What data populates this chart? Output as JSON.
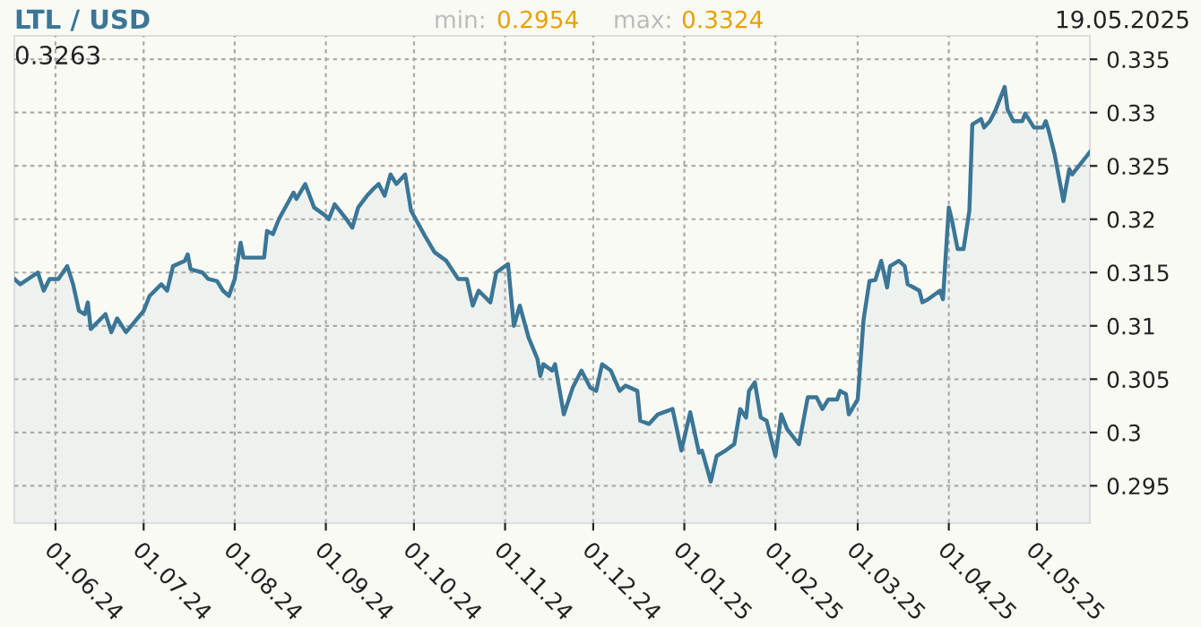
{
  "chart_data": {
    "type": "area",
    "title": "LTL / USD",
    "annotations": [
      "min:",
      "0.2954",
      "max:",
      "0.3324",
      "19.05.2025",
      "0.3263"
    ],
    "x": [
      "2024-05-18",
      "2024-05-20",
      "2024-05-26",
      "2024-05-28",
      "2024-05-30",
      "2024-06-02",
      "2024-06-05",
      "2024-06-07",
      "2024-06-09",
      "2024-06-11",
      "2024-06-12",
      "2024-06-13",
      "2024-06-18",
      "2024-06-20",
      "2024-06-22",
      "2024-06-25",
      "2024-07-01",
      "2024-07-03",
      "2024-07-07",
      "2024-07-09",
      "2024-07-11",
      "2024-07-15",
      "2024-07-16",
      "2024-07-17",
      "2024-07-21",
      "2024-07-23",
      "2024-07-26",
      "2024-07-28",
      "2024-07-30",
      "2024-08-01",
      "2024-08-03",
      "2024-08-04",
      "2024-08-07",
      "2024-08-11",
      "2024-08-12",
      "2024-08-14",
      "2024-08-16",
      "2024-08-21",
      "2024-08-22",
      "2024-08-25",
      "2024-08-28",
      "2024-09-01",
      "2024-09-02",
      "2024-09-04",
      "2024-09-08",
      "2024-09-10",
      "2024-09-12",
      "2024-09-15",
      "2024-09-17",
      "2024-09-19",
      "2024-09-21",
      "2024-09-23",
      "2024-09-25",
      "2024-09-28",
      "2024-09-30",
      "2024-10-05",
      "2024-10-08",
      "2024-10-12",
      "2024-10-16",
      "2024-10-19",
      "2024-10-21",
      "2024-10-23",
      "2024-10-27",
      "2024-10-29",
      "2024-11-02",
      "2024-11-04",
      "2024-11-06",
      "2024-11-09",
      "2024-11-12",
      "2024-11-13",
      "2024-11-14",
      "2024-11-17",
      "2024-11-18",
      "2024-11-21",
      "2024-11-24",
      "2024-11-27",
      "2024-11-30",
      "2024-12-02",
      "2024-12-04",
      "2024-12-07",
      "2024-12-10",
      "2024-12-12",
      "2024-12-16",
      "2024-12-17",
      "2024-12-20",
      "2024-12-23",
      "2024-12-28",
      "2024-12-31",
      "2025-01-03",
      "2025-01-06",
      "2025-01-07",
      "2025-01-10",
      "2025-01-12",
      "2025-01-15",
      "2025-01-18",
      "2025-01-20",
      "2025-01-22",
      "2025-01-23",
      "2025-01-25",
      "2025-01-27",
      "2025-01-29",
      "2025-02-01",
      "2025-02-03",
      "2025-02-05",
      "2025-02-09",
      "2025-02-12",
      "2025-02-15",
      "2025-02-17",
      "2025-02-19",
      "2025-02-22",
      "2025-02-23",
      "2025-02-25",
      "2025-02-26",
      "2025-03-01",
      "2025-03-03",
      "2025-03-05",
      "2025-03-07",
      "2025-03-09",
      "2025-03-11",
      "2025-03-12",
      "2025-03-15",
      "2025-03-17",
      "2025-03-18",
      "2025-03-22",
      "2025-03-23",
      "2025-03-25",
      "2025-03-29",
      "2025-03-30",
      "2025-04-01",
      "2025-04-02",
      "2025-04-04",
      "2025-04-06",
      "2025-04-08",
      "2025-04-09",
      "2025-04-12",
      "2025-04-13",
      "2025-04-15",
      "2025-04-17",
      "2025-04-20",
      "2025-04-21",
      "2025-04-23",
      "2025-04-26",
      "2025-04-27",
      "2025-04-30",
      "2025-05-03",
      "2025-05-04",
      "2025-05-05",
      "2025-05-07",
      "2025-05-10",
      "2025-05-12",
      "2025-05-13",
      "2025-05-19"
    ],
    "series": [
      {
        "color": "#3b7696",
        "values": [
          0.3144,
          0.3139,
          0.315,
          0.3133,
          0.3144,
          0.3144,
          0.3156,
          0.3139,
          0.3114,
          0.3111,
          0.3122,
          0.3097,
          0.3111,
          0.3094,
          0.3107,
          0.3094,
          0.3114,
          0.3128,
          0.3139,
          0.3133,
          0.3156,
          0.3161,
          0.3167,
          0.3153,
          0.315,
          0.3144,
          0.3142,
          0.3133,
          0.3128,
          0.3144,
          0.3178,
          0.3164,
          0.3164,
          0.3164,
          0.3189,
          0.3186,
          0.32,
          0.3225,
          0.3219,
          0.3233,
          0.3211,
          0.3203,
          0.32,
          0.3214,
          0.32,
          0.3192,
          0.3211,
          0.3222,
          0.3228,
          0.3233,
          0.3222,
          0.3242,
          0.3233,
          0.3242,
          0.3208,
          0.3183,
          0.3169,
          0.3161,
          0.3144,
          0.3144,
          0.3119,
          0.3133,
          0.3122,
          0.315,
          0.3158,
          0.31,
          0.3119,
          0.3089,
          0.3069,
          0.3053,
          0.3064,
          0.3058,
          0.3064,
          0.3017,
          0.3042,
          0.3058,
          0.3042,
          0.3039,
          0.3064,
          0.3058,
          0.3039,
          0.3044,
          0.3039,
          0.3011,
          0.3008,
          0.3017,
          0.3022,
          0.2983,
          0.3019,
          0.2981,
          0.2983,
          0.2954,
          0.2978,
          0.2983,
          0.2989,
          0.3022,
          0.3014,
          0.3039,
          0.3047,
          0.3014,
          0.3011,
          0.2978,
          0.3017,
          0.3003,
          0.2989,
          0.3033,
          0.3033,
          0.3022,
          0.3031,
          0.3031,
          0.3039,
          0.3036,
          0.3017,
          0.3031,
          0.3106,
          0.3142,
          0.3143,
          0.3161,
          0.3136,
          0.3156,
          0.3161,
          0.3156,
          0.3139,
          0.3133,
          0.3122,
          0.3125,
          0.3133,
          0.3125,
          0.3211,
          0.32,
          0.3172,
          0.3172,
          0.3208,
          0.3289,
          0.3294,
          0.3286,
          0.3292,
          0.3303,
          0.3324,
          0.3303,
          0.3292,
          0.3292,
          0.3299,
          0.3286,
          0.3286,
          0.3292,
          0.3283,
          0.3261,
          0.3217,
          0.3247,
          0.3242,
          0.3263
        ]
      }
    ],
    "xlim": [
      "2024-05-18",
      "2025-05-19"
    ],
    "xticks": [
      {
        "value": "2024-06-01",
        "label": "01.06.24"
      },
      {
        "value": "2024-07-01",
        "label": "01.07.24"
      },
      {
        "value": "2024-08-01",
        "label": "01.08.24"
      },
      {
        "value": "2024-09-01",
        "label": "01.09.24"
      },
      {
        "value": "2024-10-01",
        "label": "01.10.24"
      },
      {
        "value": "2024-11-01",
        "label": "01.11.24"
      },
      {
        "value": "2024-12-01",
        "label": "01.12.24"
      },
      {
        "value": "2025-01-01",
        "label": "01.01.25"
      },
      {
        "value": "2025-02-01",
        "label": "01.02.25"
      },
      {
        "value": "2025-03-01",
        "label": "01.03.25"
      },
      {
        "value": "2025-04-01",
        "label": "01.04.25"
      },
      {
        "value": "2025-05-01",
        "label": "01.05.25"
      }
    ],
    "ylim": [
      0.2915,
      0.3372
    ],
    "yticks": [
      0.295,
      0.3,
      0.305,
      0.31,
      0.315,
      0.32,
      0.325,
      0.33,
      0.335
    ],
    "grid": true,
    "legend": false
  }
}
